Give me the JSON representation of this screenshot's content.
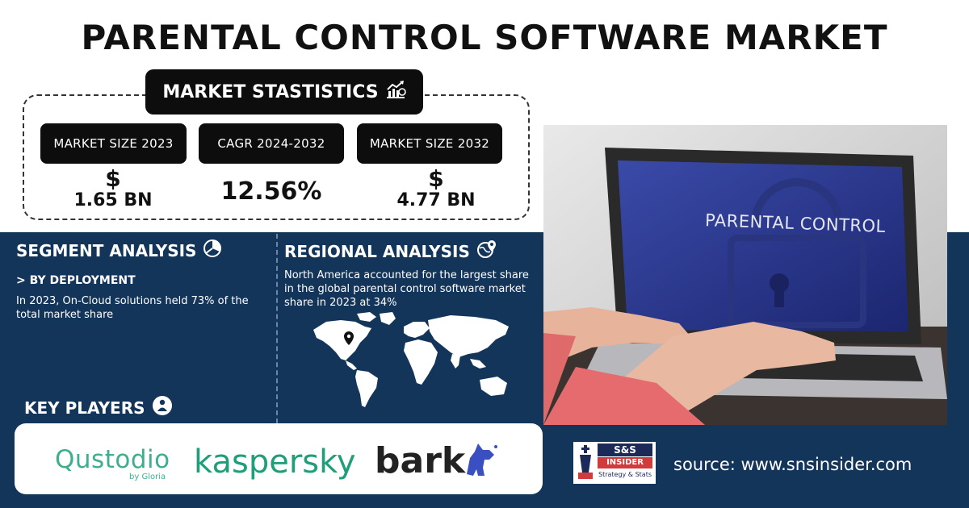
{
  "title": "PARENTAL CONTROL SOFTWARE MARKET",
  "stats": {
    "header": "MARKET STASTISTICS",
    "header_icon": "growth-chart-icon",
    "items": [
      {
        "label": "MARKET SIZE 2023",
        "currency": "$",
        "value": "1.65 BN"
      },
      {
        "label": "CAGR 2024-2032",
        "value": "12.56%"
      },
      {
        "label": "MARKET SIZE 2032",
        "currency": "$",
        "value": "4.77 BN"
      }
    ]
  },
  "segment": {
    "title": "SEGMENT ANALYSIS",
    "icon": "pie-chart-icon",
    "subtitle": "> BY DEPLOYMENT",
    "text": "In 2023, On-Cloud solutions held 73% of the total market share"
  },
  "regional": {
    "title": "REGIONAL ANALYSIS",
    "icon": "globe-pin-icon",
    "text": "North America accounted for the largest share in the global parental control software market share in 2023 at 34%"
  },
  "key_players": {
    "title": "KEY PLAYERS",
    "icon": "person-icon",
    "logos": [
      {
        "name": "Qustodio",
        "sub": "by Gloria",
        "color": "#3fae8f"
      },
      {
        "name": "kaspersky",
        "color": "#1f9e7a"
      },
      {
        "name": "bark",
        "color": "#222222"
      }
    ]
  },
  "photo": {
    "screen_text": "PARENTAL CONTROL"
  },
  "source": {
    "text": "source: www.snsinsider.com",
    "logo_top": "S&S",
    "logo_mid": "INSIDER",
    "logo_bottom": "Strategy & Stats"
  },
  "colors": {
    "navy": "#14355a",
    "black": "#0d0d0d",
    "white": "#ffffff"
  }
}
